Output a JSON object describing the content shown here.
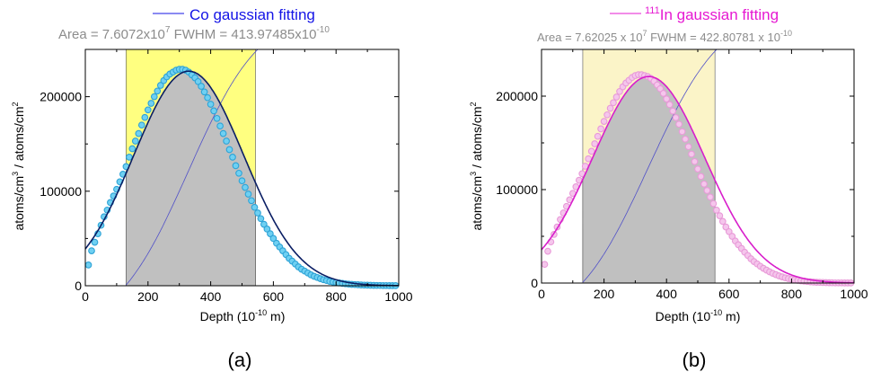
{
  "chart_data": [
    {
      "type": "scatter",
      "legend_label": "Co gaussian fitting",
      "legend_color": "#1414e6",
      "area_prefix": "Area = 7.6072x10",
      "area_exp": "7",
      "fwhm_prefix": " FWHM = 413.97485x10",
      "fwhm_exp": "-10",
      "xlabel_prefix": "Depth (10",
      "xlabel_exp": "-10",
      "xlabel_suffix": " m)",
      "ylabel": "atoms/cm3 / atoms/cm2",
      "ylabel_parts": [
        "atoms/cm",
        "3",
        " / atoms/cm",
        "2"
      ],
      "caption": "(a)",
      "xlim": [
        0,
        1000
      ],
      "ylim": [
        0,
        250000
      ],
      "xticks": [
        0,
        200,
        400,
        600,
        800,
        1000
      ],
      "yticks": [
        0,
        100000,
        200000
      ],
      "band": [
        130,
        543
      ],
      "band_color": "#ffff80",
      "peak_center": 330,
      "peak_amp": 227000,
      "peak_fwhm": 414,
      "fit_color": "#0a1e64",
      "point_color": "#2ea3d6",
      "point_fill": "#6fd0f2",
      "cumulative_color": "#5050c8",
      "points": {
        "x": [
          10,
          20,
          30,
          40,
          50,
          60,
          70,
          80,
          90,
          100,
          110,
          120,
          130,
          140,
          150,
          160,
          170,
          180,
          190,
          200,
          210,
          220,
          230,
          240,
          250,
          260,
          270,
          280,
          290,
          300,
          310,
          320,
          330,
          340,
          350,
          360,
          370,
          380,
          390,
          400,
          410,
          420,
          430,
          440,
          450,
          460,
          470,
          480,
          490,
          500,
          510,
          520,
          530,
          540,
          550,
          560,
          570,
          580,
          590,
          600,
          610,
          620,
          630,
          640,
          650,
          660,
          670,
          680,
          690,
          700,
          710,
          720,
          730,
          740,
          750,
          760,
          770,
          780,
          790,
          800,
          810,
          820,
          830,
          840,
          850,
          860,
          870,
          880,
          890,
          900,
          910,
          920,
          930,
          940,
          950,
          960,
          970,
          980,
          990
        ],
        "y": [
          22000,
          37000,
          46000,
          55000,
          64000,
          73000,
          80000,
          88000,
          95000,
          102000,
          110000,
          118000,
          126000,
          136000,
          145000,
          153000,
          161000,
          170000,
          178000,
          186000,
          193000,
          200000,
          206000,
          212000,
          217000,
          221000,
          224000,
          226000,
          228000,
          229000,
          229000,
          228000,
          226000,
          223000,
          220000,
          216000,
          211000,
          205000,
          199000,
          192000,
          185000,
          177000,
          169000,
          161000,
          153000,
          144000,
          136000,
          127000,
          119000,
          111000,
          104000,
          97000,
          90000,
          83000,
          77000,
          71000,
          65000,
          60000,
          55000,
          50000,
          45000,
          41000,
          37000,
          33000,
          29000,
          26000,
          23000,
          20000,
          17500,
          15500,
          13500,
          11500,
          10000,
          8700,
          7500,
          6400,
          5500,
          4700,
          4000,
          3400,
          2900,
          2450,
          2050,
          1750,
          1450,
          1200,
          1000,
          850,
          700,
          580,
          480,
          390,
          320,
          260,
          210,
          170,
          140,
          110,
          90
        ]
      }
    },
    {
      "type": "scatter",
      "legend_label_sup": "111",
      "legend_label": "In gaussian fitting",
      "legend_color": "#e619d2",
      "area_prefix": "Area = 7.62025 x 10",
      "area_exp": "7",
      "fwhm_prefix": " FWHM = 422.80781 x 10",
      "fwhm_exp": "-10",
      "xlabel_prefix": "Depth (10",
      "xlabel_exp": "-10",
      "xlabel_suffix": " m)",
      "ylabel": "atoms/cm3 / atoms/cm2",
      "ylabel_parts": [
        "atoms/cm",
        "3",
        " / atoms/cm",
        "2"
      ],
      "caption": "(b)",
      "xlim": [
        0,
        1000
      ],
      "ylim": [
        0,
        250000
      ],
      "xticks": [
        0,
        200,
        400,
        600,
        800,
        1000
      ],
      "yticks": [
        0,
        100000,
        200000
      ],
      "band": [
        132,
        555
      ],
      "band_color": "#fbf4c8",
      "peak_center": 343,
      "peak_amp": 221000,
      "peak_fwhm": 423,
      "fit_color": "#d81ecb",
      "point_color": "#e89ad8",
      "point_fill": "#f5c6ec",
      "cumulative_color": "#5050c8",
      "points": {
        "x": [
          10,
          20,
          30,
          40,
          50,
          60,
          70,
          80,
          90,
          100,
          110,
          120,
          130,
          140,
          150,
          160,
          170,
          180,
          190,
          200,
          210,
          220,
          230,
          240,
          250,
          260,
          270,
          280,
          290,
          300,
          310,
          320,
          330,
          340,
          350,
          360,
          370,
          380,
          390,
          400,
          410,
          420,
          430,
          440,
          450,
          460,
          470,
          480,
          490,
          500,
          510,
          520,
          530,
          540,
          550,
          560,
          570,
          580,
          590,
          600,
          610,
          620,
          630,
          640,
          650,
          660,
          670,
          680,
          690,
          700,
          710,
          720,
          730,
          740,
          750,
          760,
          770,
          780,
          790,
          800,
          810,
          820,
          830,
          840,
          850,
          860,
          870,
          880,
          890,
          900,
          910,
          920,
          930,
          940,
          950,
          960,
          970,
          980,
          990
        ],
        "y": [
          20000,
          34000,
          44000,
          52000,
          60000,
          68000,
          75000,
          82000,
          89000,
          96000,
          103000,
          110000,
          117000,
          125000,
          133000,
          141000,
          149000,
          157000,
          165000,
          173000,
          180000,
          187000,
          193000,
          199000,
          205000,
          210000,
          214000,
          217000,
          220000,
          222000,
          223000,
          223000,
          222000,
          221000,
          219000,
          216000,
          212000,
          208000,
          203000,
          197000,
          191000,
          184000,
          177000,
          170000,
          162000,
          154000,
          146000,
          138000,
          130000,
          122000,
          114000,
          106000,
          99000,
          92000,
          85000,
          78000,
          72000,
          66000,
          60000,
          55000,
          50000,
          45000,
          41000,
          37000,
          33000,
          29500,
          26000,
          23000,
          20500,
          18000,
          15800,
          13800,
          12000,
          10400,
          9000,
          7700,
          6600,
          5600,
          4800,
          4000,
          3400,
          2900,
          2400,
          2000,
          1650,
          1350,
          1100,
          900,
          730,
          590,
          470,
          380,
          300,
          240,
          190,
          150,
          120,
          95,
          75
        ]
      }
    }
  ]
}
